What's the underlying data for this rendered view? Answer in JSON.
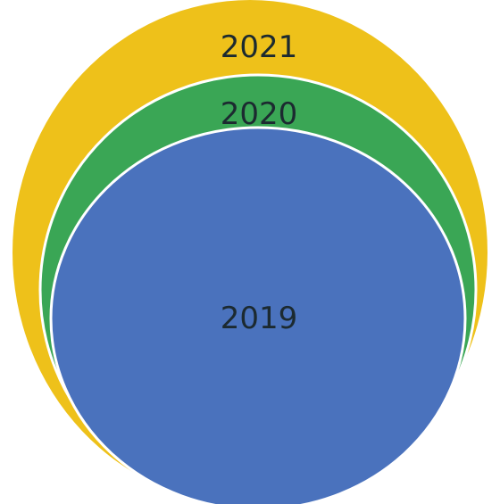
{
  "diagram": {
    "type": "nested-circles",
    "circles": [
      {
        "label": "2021",
        "color": "#eec11a"
      },
      {
        "label": "2020",
        "color": "#3aa655"
      },
      {
        "label": "2019",
        "color": "#4a72bd"
      }
    ],
    "outline_color": "#ffffff",
    "label_color": "#1c2a30"
  }
}
